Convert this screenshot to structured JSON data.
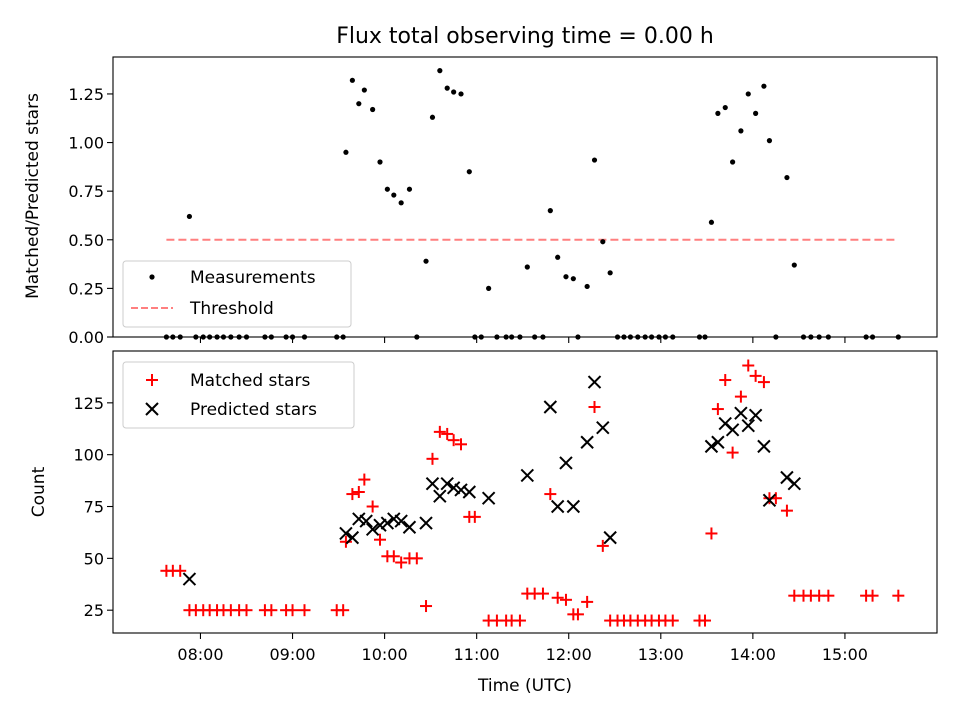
{
  "title": "Flux total observing time = 0.00 h",
  "colors": {
    "measurements": "#000000",
    "threshold": "#ff7f7f",
    "matched": "#ff0000",
    "predicted": "#000000"
  },
  "chart_data": [
    {
      "type": "scatter",
      "ylabel": "Matched/Predicted stars",
      "xlabel": "",
      "x_axis": {
        "unit": "hour_utc",
        "xlim": [
          7.05,
          16.0
        ],
        "shared": true
      },
      "ylim": [
        0,
        1.44
      ],
      "yticks": [
        0.0,
        0.25,
        0.5,
        0.75,
        1.0,
        1.25
      ],
      "ytick_labels": [
        "0.00",
        "0.25",
        "0.50",
        "0.75",
        "1.00",
        "1.25"
      ],
      "grid": false,
      "legend_position": "lower-left",
      "series": [
        {
          "name": "Measurements",
          "marker": "dot",
          "points": [
            [
              7.63,
              0
            ],
            [
              7.7,
              0
            ],
            [
              7.78,
              0
            ],
            [
              7.88,
              0.62
            ],
            [
              7.95,
              0
            ],
            [
              8.03,
              0
            ],
            [
              8.1,
              0
            ],
            [
              8.18,
              0
            ],
            [
              8.25,
              0
            ],
            [
              8.33,
              0
            ],
            [
              8.42,
              0
            ],
            [
              8.5,
              0
            ],
            [
              8.7,
              0
            ],
            [
              8.77,
              0
            ],
            [
              8.93,
              0
            ],
            [
              9.0,
              0
            ],
            [
              9.13,
              0
            ],
            [
              9.48,
              0
            ],
            [
              9.55,
              0
            ],
            [
              9.58,
              0.95
            ],
            [
              9.65,
              1.32
            ],
            [
              9.72,
              1.2
            ],
            [
              9.78,
              1.27
            ],
            [
              9.87,
              1.17
            ],
            [
              9.95,
              0.9
            ],
            [
              10.03,
              0.76
            ],
            [
              10.1,
              0.73
            ],
            [
              10.18,
              0.69
            ],
            [
              10.27,
              0.76
            ],
            [
              10.35,
              0
            ],
            [
              10.45,
              0.39
            ],
            [
              10.52,
              1.13
            ],
            [
              10.6,
              1.37
            ],
            [
              10.68,
              1.28
            ],
            [
              10.75,
              1.26
            ],
            [
              10.83,
              1.25
            ],
            [
              10.92,
              0.85
            ],
            [
              10.98,
              0
            ],
            [
              11.05,
              0
            ],
            [
              11.13,
              0.25
            ],
            [
              11.22,
              0
            ],
            [
              11.32,
              0
            ],
            [
              11.38,
              0
            ],
            [
              11.47,
              0
            ],
            [
              11.55,
              0.36
            ],
            [
              11.63,
              0
            ],
            [
              11.72,
              0
            ],
            [
              11.8,
              0.65
            ],
            [
              11.88,
              0.41
            ],
            [
              11.97,
              0.31
            ],
            [
              12.05,
              0.3
            ],
            [
              12.1,
              0
            ],
            [
              12.2,
              0.26
            ],
            [
              12.28,
              0.91
            ],
            [
              12.37,
              0.49
            ],
            [
              12.45,
              0.33
            ],
            [
              12.53,
              0
            ],
            [
              12.6,
              0
            ],
            [
              12.67,
              0
            ],
            [
              12.75,
              0
            ],
            [
              12.83,
              0
            ],
            [
              12.9,
              0
            ],
            [
              12.98,
              0
            ],
            [
              13.05,
              0
            ],
            [
              13.13,
              0
            ],
            [
              13.42,
              0
            ],
            [
              13.48,
              0
            ],
            [
              13.55,
              0.59
            ],
            [
              13.62,
              1.15
            ],
            [
              13.7,
              1.18
            ],
            [
              13.78,
              0.9
            ],
            [
              13.87,
              1.06
            ],
            [
              13.95,
              1.25
            ],
            [
              14.03,
              1.15
            ],
            [
              14.12,
              1.29
            ],
            [
              14.18,
              1.01
            ],
            [
              14.25,
              0
            ],
            [
              14.37,
              0.82
            ],
            [
              14.45,
              0.37
            ],
            [
              14.55,
              0
            ],
            [
              14.63,
              0
            ],
            [
              14.72,
              0
            ],
            [
              14.82,
              0
            ],
            [
              15.23,
              0
            ],
            [
              15.3,
              0
            ],
            [
              15.58,
              0
            ]
          ]
        },
        {
          "name": "Threshold",
          "line_style": "dashed",
          "x": [
            7.63,
            15.58
          ],
          "y": [
            0.5,
            0.5
          ]
        }
      ]
    },
    {
      "type": "scatter",
      "ylabel": "Count",
      "xlabel": "Time (UTC)",
      "x_axis": {
        "unit": "hour_utc",
        "xlim": [
          7.05,
          16.0
        ]
      },
      "xticks": [
        8,
        9,
        10,
        11,
        12,
        13,
        14,
        15
      ],
      "xtick_labels": [
        "08:00",
        "09:00",
        "10:00",
        "11:00",
        "12:00",
        "13:00",
        "14:00",
        "15:00"
      ],
      "ylim": [
        14,
        150
      ],
      "yticks": [
        25,
        50,
        75,
        100,
        125
      ],
      "ytick_labels": [
        "25",
        "50",
        "75",
        "100",
        "125"
      ],
      "grid": false,
      "legend_position": "upper-left",
      "series": [
        {
          "name": "Matched stars",
          "marker": "plus",
          "points": [
            [
              7.63,
              44
            ],
            [
              7.7,
              44
            ],
            [
              7.78,
              44
            ],
            [
              7.88,
              25
            ],
            [
              7.95,
              25
            ],
            [
              8.03,
              25
            ],
            [
              8.1,
              25
            ],
            [
              8.18,
              25
            ],
            [
              8.25,
              25
            ],
            [
              8.33,
              25
            ],
            [
              8.42,
              25
            ],
            [
              8.5,
              25
            ],
            [
              8.7,
              25
            ],
            [
              8.77,
              25
            ],
            [
              8.93,
              25
            ],
            [
              9.0,
              25
            ],
            [
              9.13,
              25
            ],
            [
              9.48,
              25
            ],
            [
              9.55,
              25
            ],
            [
              9.58,
              58
            ],
            [
              9.65,
              81
            ],
            [
              9.72,
              82
            ],
            [
              9.78,
              88
            ],
            [
              9.87,
              75
            ],
            [
              9.95,
              59
            ],
            [
              10.03,
              51
            ],
            [
              10.1,
              51
            ],
            [
              10.18,
              48
            ],
            [
              10.27,
              50
            ],
            [
              10.35,
              50
            ],
            [
              10.45,
              27
            ],
            [
              10.52,
              98
            ],
            [
              10.6,
              111
            ],
            [
              10.68,
              110
            ],
            [
              10.75,
              107
            ],
            [
              10.83,
              105
            ],
            [
              10.92,
              70
            ],
            [
              10.98,
              70
            ],
            [
              11.13,
              20
            ],
            [
              11.22,
              20
            ],
            [
              11.32,
              20
            ],
            [
              11.38,
              20
            ],
            [
              11.47,
              20
            ],
            [
              11.55,
              33
            ],
            [
              11.63,
              33
            ],
            [
              11.72,
              33
            ],
            [
              11.8,
              81
            ],
            [
              11.88,
              31
            ],
            [
              11.97,
              30
            ],
            [
              12.05,
              23
            ],
            [
              12.1,
              23
            ],
            [
              12.2,
              29
            ],
            [
              12.28,
              123
            ],
            [
              12.37,
              56
            ],
            [
              12.45,
              20
            ],
            [
              12.53,
              20
            ],
            [
              12.6,
              20
            ],
            [
              12.67,
              20
            ],
            [
              12.75,
              20
            ],
            [
              12.83,
              20
            ],
            [
              12.9,
              20
            ],
            [
              12.98,
              20
            ],
            [
              13.05,
              20
            ],
            [
              13.13,
              20
            ],
            [
              13.42,
              20
            ],
            [
              13.48,
              20
            ],
            [
              13.55,
              62
            ],
            [
              13.62,
              122
            ],
            [
              13.7,
              136
            ],
            [
              13.78,
              101
            ],
            [
              13.87,
              128
            ],
            [
              13.95,
              143
            ],
            [
              14.03,
              138
            ],
            [
              14.12,
              135
            ],
            [
              14.18,
              79
            ],
            [
              14.25,
              79
            ],
            [
              14.37,
              73
            ],
            [
              14.45,
              32
            ],
            [
              14.55,
              32
            ],
            [
              14.63,
              32
            ],
            [
              14.72,
              32
            ],
            [
              14.82,
              32
            ],
            [
              15.23,
              32
            ],
            [
              15.3,
              32
            ],
            [
              15.58,
              32
            ]
          ]
        },
        {
          "name": "Predicted stars",
          "marker": "x",
          "points": [
            [
              7.88,
              40
            ],
            [
              9.58,
              62
            ],
            [
              9.65,
              60
            ],
            [
              9.72,
              69
            ],
            [
              9.8,
              68
            ],
            [
              9.87,
              64
            ],
            [
              9.95,
              66
            ],
            [
              10.03,
              67
            ],
            [
              10.1,
              69
            ],
            [
              10.18,
              68
            ],
            [
              10.27,
              65
            ],
            [
              10.45,
              67
            ],
            [
              10.52,
              86
            ],
            [
              10.6,
              80
            ],
            [
              10.68,
              86
            ],
            [
              10.75,
              84
            ],
            [
              10.83,
              83
            ],
            [
              10.92,
              82
            ],
            [
              11.13,
              79
            ],
            [
              11.55,
              90
            ],
            [
              11.8,
              123
            ],
            [
              11.88,
              75
            ],
            [
              11.97,
              96
            ],
            [
              12.05,
              75
            ],
            [
              12.2,
              106
            ],
            [
              12.28,
              135
            ],
            [
              12.37,
              113
            ],
            [
              12.45,
              60
            ],
            [
              13.55,
              104
            ],
            [
              13.62,
              106
            ],
            [
              13.7,
              115
            ],
            [
              13.78,
              112
            ],
            [
              13.87,
              120
            ],
            [
              13.95,
              114
            ],
            [
              14.03,
              119
            ],
            [
              14.12,
              104
            ],
            [
              14.18,
              78
            ],
            [
              14.37,
              89
            ],
            [
              14.45,
              86
            ]
          ]
        }
      ]
    }
  ]
}
